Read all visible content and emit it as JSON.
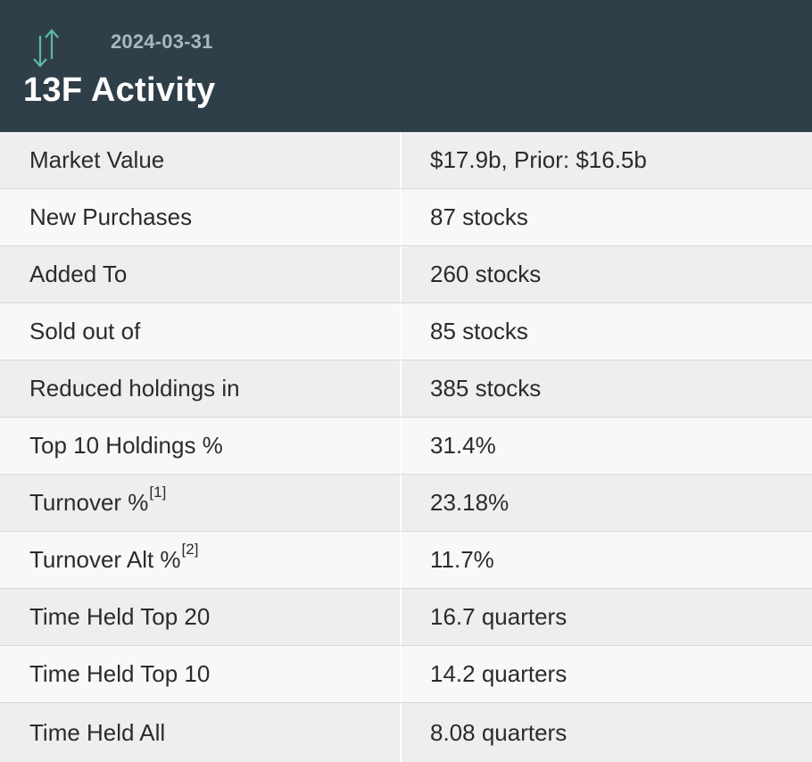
{
  "header": {
    "date": "2024-03-31",
    "title": "13F Activity",
    "icon": "up-down-arrows-icon",
    "icon_color": "#5fb8a6",
    "background": "#2f3f49"
  },
  "rows": [
    {
      "label": "Market Value",
      "footnote": "",
      "value": "$17.9b, Prior: $16.5b"
    },
    {
      "label": "New Purchases",
      "footnote": "",
      "value": "87 stocks"
    },
    {
      "label": "Added To",
      "footnote": "",
      "value": "260 stocks"
    },
    {
      "label": "Sold out of",
      "footnote": "",
      "value": "85 stocks"
    },
    {
      "label": "Reduced holdings in",
      "footnote": "",
      "value": "385 stocks"
    },
    {
      "label": "Top 10 Holdings %",
      "footnote": "",
      "value": "31.4%"
    },
    {
      "label": "Turnover %",
      "footnote": "[1]",
      "value": "23.18%"
    },
    {
      "label": "Turnover Alt %",
      "footnote": "[2]",
      "value": "11.7%"
    },
    {
      "label": "Time Held Top 20",
      "footnote": "",
      "value": "16.7 quarters"
    },
    {
      "label": "Time Held Top 10",
      "footnote": "",
      "value": "14.2 quarters"
    },
    {
      "label": "Time Held All",
      "footnote": "",
      "value": "8.08 quarters"
    }
  ]
}
